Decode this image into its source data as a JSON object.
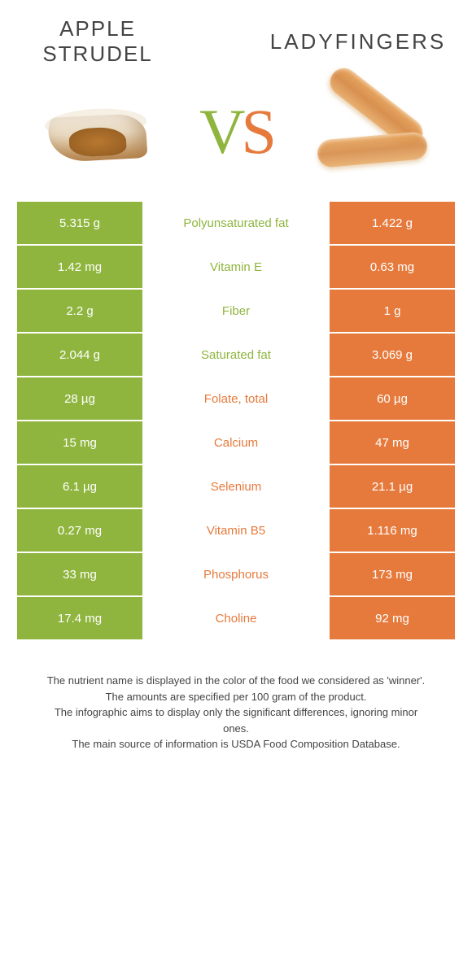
{
  "header": {
    "left_title": "Apple Strudel",
    "right_title": "Ladyfingers",
    "vs_v": "V",
    "vs_s": "S"
  },
  "colors": {
    "left": "#8fb53e",
    "right": "#e67a3c",
    "bg": "#ffffff"
  },
  "table": {
    "left_bg": "bg-green",
    "right_bg": "bg-orange",
    "rows": [
      {
        "left": "5.315 g",
        "label": "Polyunsaturated fat",
        "right": "1.422 g",
        "winner": "left"
      },
      {
        "left": "1.42 mg",
        "label": "Vitamin E",
        "right": "0.63 mg",
        "winner": "left"
      },
      {
        "left": "2.2 g",
        "label": "Fiber",
        "right": "1 g",
        "winner": "left"
      },
      {
        "left": "2.044 g",
        "label": "Saturated fat",
        "right": "3.069 g",
        "winner": "left"
      },
      {
        "left": "28 µg",
        "label": "Folate, total",
        "right": "60 µg",
        "winner": "right"
      },
      {
        "left": "15 mg",
        "label": "Calcium",
        "right": "47 mg",
        "winner": "right"
      },
      {
        "left": "6.1 µg",
        "label": "Selenium",
        "right": "21.1 µg",
        "winner": "right"
      },
      {
        "left": "0.27 mg",
        "label": "Vitamin B5",
        "right": "1.116 mg",
        "winner": "right"
      },
      {
        "left": "33 mg",
        "label": "Phosphorus",
        "right": "173 mg",
        "winner": "right"
      },
      {
        "left": "17.4 mg",
        "label": "Choline",
        "right": "92 mg",
        "winner": "right"
      }
    ]
  },
  "footer": {
    "line1": "The nutrient name is displayed in the color of the food we considered as 'winner'.",
    "line2": "The amounts are specified per 100 gram of the product.",
    "line3": "The infographic aims to display only the significant differences, ignoring minor ones.",
    "line4": "The main source of information is USDA Food Composition Database."
  }
}
